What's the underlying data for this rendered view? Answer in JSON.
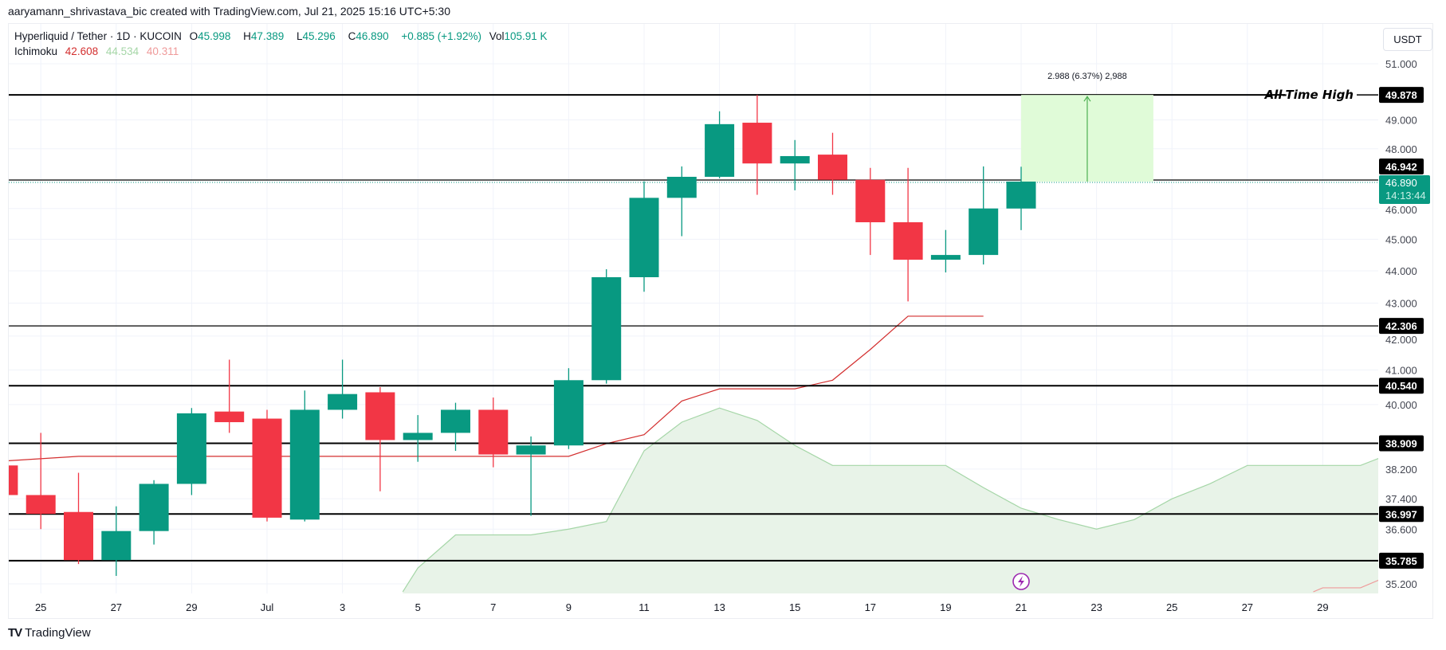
{
  "header": {
    "creator": "aaryamann_shrivastava_bic created with TradingView.com, Jul 21, 2025 15:16 UTC+5:30"
  },
  "legend": {
    "symbol": "Hyperliquid / Tether · 1D · KUCOIN",
    "o_label": "O",
    "o": "45.998",
    "h_label": "H",
    "h": "47.389",
    "l_label": "L",
    "l": "45.296",
    "c_label": "C",
    "c": "46.890",
    "change": "+0.885 (+1.92%)",
    "vol_label": "Vol",
    "vol": "105.91 K",
    "indicator": "Ichimoku",
    "ichimoku_values": [
      "42.608",
      "44.534",
      "40.311"
    ]
  },
  "currency_button": "USDT",
  "watermark": "TradingView",
  "colors": {
    "up": "#089981",
    "down": "#f23645",
    "base_line": "#d32f2f",
    "cloud_line": "#a5d6a7",
    "cloud_fill": "#e8f3e8",
    "span_b": "#ef9a9a",
    "measure_fill": "#e0fbd8",
    "measure_line": "#4caf50",
    "event": "#9c27b0"
  },
  "chart_data": {
    "type": "candlestick",
    "title": "Hyperliquid / Tether · 1D · KUCOIN",
    "x_unit": "days offset from Jul 1, 2025",
    "y_scale": "log",
    "ylim": [
      35.0,
      51.6
    ],
    "y_ticks": [
      "51.000",
      "49.000",
      "48.000",
      "46.000",
      "45.000",
      "44.000",
      "43.000",
      "42.000",
      "41.000",
      "40.000",
      "38.200",
      "37.400",
      "36.600",
      "35.200"
    ],
    "x_ticks": [
      {
        "x": -6,
        "label": "25"
      },
      {
        "x": -4,
        "label": "27"
      },
      {
        "x": -2,
        "label": "29"
      },
      {
        "x": 0,
        "label": "Jul"
      },
      {
        "x": 2,
        "label": "3"
      },
      {
        "x": 4,
        "label": "5"
      },
      {
        "x": 6,
        "label": "7"
      },
      {
        "x": 8,
        "label": "9"
      },
      {
        "x": 10,
        "label": "11"
      },
      {
        "x": 12,
        "label": "13"
      },
      {
        "x": 14,
        "label": "15"
      },
      {
        "x": 16,
        "label": "17"
      },
      {
        "x": 18,
        "label": "19"
      },
      {
        "x": 20,
        "label": "21"
      },
      {
        "x": 22,
        "label": "23"
      },
      {
        "x": 24,
        "label": "25"
      },
      {
        "x": 26,
        "label": "27"
      },
      {
        "x": 28,
        "label": "29"
      }
    ],
    "candles": [
      {
        "x": -7,
        "o": 38.3,
        "h": 38.4,
        "l": 37.4,
        "c": 37.5
      },
      {
        "x": -6,
        "o": 37.5,
        "h": 39.2,
        "l": 36.6,
        "c": 37.0
      },
      {
        "x": -5,
        "o": 37.05,
        "h": 38.1,
        "l": 35.7,
        "c": 35.8
      },
      {
        "x": -4,
        "o": 35.8,
        "h": 37.2,
        "l": 35.4,
        "c": 36.55
      },
      {
        "x": -3,
        "o": 36.55,
        "h": 37.9,
        "l": 36.2,
        "c": 37.8
      },
      {
        "x": -2,
        "o": 37.8,
        "h": 39.9,
        "l": 37.5,
        "c": 39.75
      },
      {
        "x": -1,
        "o": 39.8,
        "h": 41.3,
        "l": 39.2,
        "c": 39.5
      },
      {
        "x": 0,
        "o": 39.6,
        "h": 39.85,
        "l": 36.8,
        "c": 36.9
      },
      {
        "x": 1,
        "o": 36.85,
        "h": 40.4,
        "l": 36.8,
        "c": 39.85
      },
      {
        "x": 2,
        "o": 39.85,
        "h": 41.3,
        "l": 39.6,
        "c": 40.3
      },
      {
        "x": 3,
        "o": 40.35,
        "h": 40.5,
        "l": 37.6,
        "c": 39.0
      },
      {
        "x": 4,
        "o": 39.0,
        "h": 39.7,
        "l": 38.4,
        "c": 39.2
      },
      {
        "x": 5,
        "o": 39.2,
        "h": 40.05,
        "l": 38.7,
        "c": 39.85
      },
      {
        "x": 6,
        "o": 39.85,
        "h": 40.2,
        "l": 38.25,
        "c": 38.6
      },
      {
        "x": 7,
        "o": 38.6,
        "h": 39.1,
        "l": 36.95,
        "c": 38.85
      },
      {
        "x": 8,
        "o": 38.85,
        "h": 41.05,
        "l": 38.75,
        "c": 40.7
      },
      {
        "x": 9,
        "o": 40.7,
        "h": 44.05,
        "l": 40.6,
        "c": 43.8
      },
      {
        "x": 10,
        "o": 43.8,
        "h": 46.9,
        "l": 43.35,
        "c": 46.35
      },
      {
        "x": 11,
        "o": 46.35,
        "h": 47.4,
        "l": 45.1,
        "c": 47.05
      },
      {
        "x": 12,
        "o": 47.05,
        "h": 49.3,
        "l": 47.0,
        "c": 48.85
      },
      {
        "x": 13,
        "o": 48.9,
        "h": 49.878,
        "l": 46.45,
        "c": 47.5
      },
      {
        "x": 14,
        "o": 47.5,
        "h": 48.3,
        "l": 46.6,
        "c": 47.75
      },
      {
        "x": 15,
        "o": 47.8,
        "h": 48.55,
        "l": 46.45,
        "c": 46.95
      },
      {
        "x": 16,
        "o": 46.95,
        "h": 47.35,
        "l": 44.5,
        "c": 45.55
      },
      {
        "x": 17,
        "o": 45.55,
        "h": 47.35,
        "l": 43.05,
        "c": 44.35
      },
      {
        "x": 18,
        "o": 44.35,
        "h": 45.3,
        "l": 43.95,
        "c": 44.5
      },
      {
        "x": 19,
        "o": 44.5,
        "h": 47.4,
        "l": 44.2,
        "c": 46.0
      },
      {
        "x": 20,
        "o": 45.998,
        "h": 47.389,
        "l": 45.296,
        "c": 46.89
      }
    ],
    "ichimoku_base": [
      [
        -7.3,
        38.4
      ],
      [
        -5,
        38.55
      ],
      [
        8,
        38.55
      ],
      [
        9,
        38.9
      ],
      [
        10,
        39.15
      ],
      [
        11,
        40.1
      ],
      [
        12,
        40.45
      ],
      [
        14,
        40.45
      ],
      [
        15,
        40.7
      ],
      [
        16,
        41.6
      ],
      [
        17,
        42.6
      ],
      [
        19,
        42.6
      ]
    ],
    "ichimoku_span_a": [
      [
        3.6,
        35.0
      ],
      [
        4,
        35.6
      ],
      [
        5,
        36.45
      ],
      [
        7,
        36.45
      ],
      [
        8,
        36.6
      ],
      [
        9,
        36.8
      ],
      [
        10,
        38.7
      ],
      [
        11,
        39.5
      ],
      [
        12,
        39.9
      ],
      [
        13,
        39.55
      ],
      [
        14,
        38.85
      ],
      [
        15,
        38.3
      ],
      [
        18,
        38.3
      ],
      [
        19,
        37.7
      ],
      [
        20,
        37.15
      ],
      [
        21,
        36.85
      ],
      [
        22,
        36.6
      ],
      [
        23,
        36.85
      ],
      [
        24,
        37.4
      ],
      [
        25,
        37.8
      ],
      [
        26,
        38.3
      ],
      [
        29,
        38.3
      ],
      [
        29.5,
        38.5
      ]
    ],
    "ichimoku_span_b": [
      [
        27.75,
        35.0
      ],
      [
        28,
        35.1
      ],
      [
        29,
        35.1
      ],
      [
        29.5,
        35.3
      ]
    ],
    "levels": [
      {
        "value": 49.878,
        "label": "49.878",
        "note": "All-Time High",
        "weight": "thick"
      },
      {
        "value": 46.942,
        "label": "46.942",
        "weight": "thin"
      },
      {
        "value": 42.306,
        "label": "42.306",
        "weight": "thin"
      },
      {
        "value": 40.54,
        "label": "40.540",
        "weight": "thick"
      },
      {
        "value": 38.909,
        "label": "38.909",
        "weight": "thick"
      },
      {
        "value": 36.997,
        "label": "36.997",
        "weight": "thick"
      },
      {
        "value": 35.785,
        "label": "35.785",
        "weight": "thick"
      }
    ],
    "last_price": {
      "value": 46.89,
      "label": "46.890",
      "countdown": "14:13:44"
    },
    "measure": {
      "x_from": 20,
      "x_to": 23,
      "from": 46.89,
      "to": 49.878,
      "label": "2.988 (6.37%) 2,988"
    },
    "event_marker": {
      "x": 20
    }
  }
}
